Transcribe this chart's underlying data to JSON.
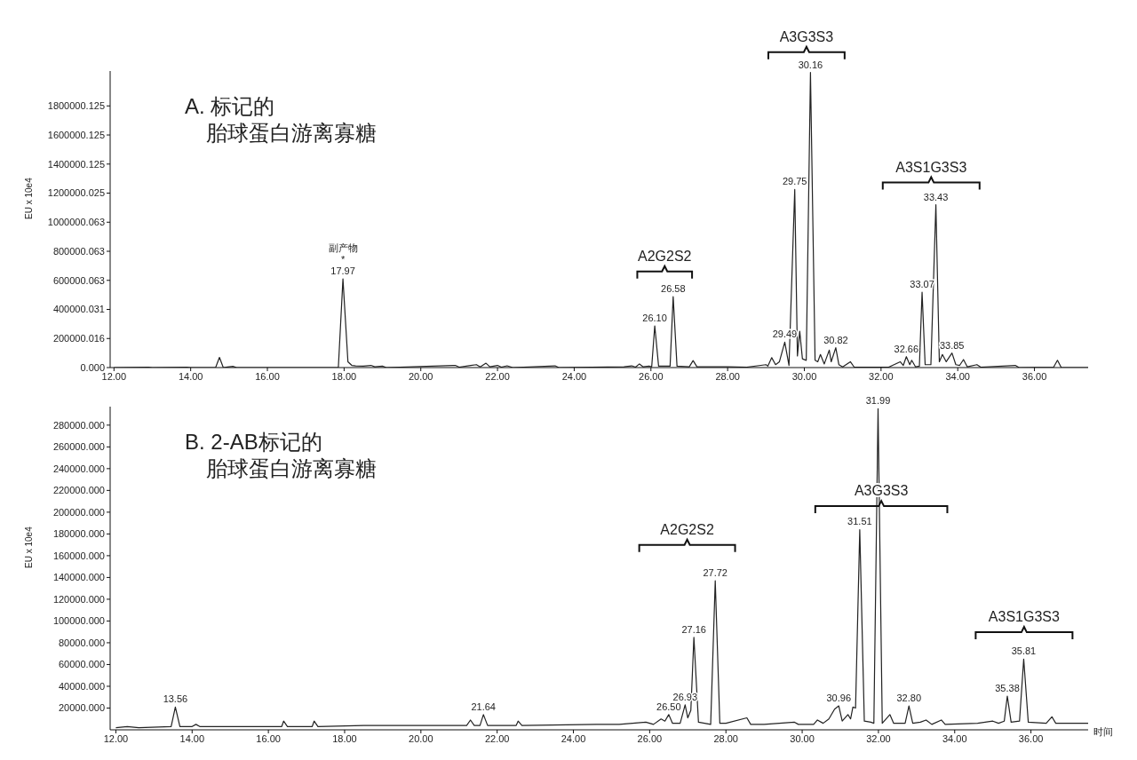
{
  "chart_data": [
    {
      "type": "line",
      "title": "A. 标记的",
      "subtitle": "胎球蛋白游离寡糖",
      "ylabel": "EU x 10e4",
      "xlim": [
        11.9,
        37.4
      ],
      "ylim": [
        0,
        2040000
      ],
      "xticks": [
        {
          "value": 12,
          "label": "12.00"
        },
        {
          "value": 14,
          "label": "14.00"
        },
        {
          "value": 16,
          "label": "16.00"
        },
        {
          "value": 18,
          "label": "18.00"
        },
        {
          "value": 20,
          "label": "20.00"
        },
        {
          "value": 22,
          "label": "22.00"
        },
        {
          "value": 24,
          "label": "24.00"
        },
        {
          "value": 26,
          "label": "26.00"
        },
        {
          "value": 28,
          "label": "28.00"
        },
        {
          "value": 30,
          "label": "30.00"
        },
        {
          "value": 32,
          "label": "32.00"
        },
        {
          "value": 34,
          "label": "34.00"
        },
        {
          "value": 36,
          "label": "36.00"
        }
      ],
      "yticks": [
        {
          "value": 0,
          "label": "0.000"
        },
        {
          "value": 200000.016,
          "label": "200000.016"
        },
        {
          "value": 400000.031,
          "label": "400000.031"
        },
        {
          "value": 600000.063,
          "label": "600000.063"
        },
        {
          "value": 800000.063,
          "label": "800000.063"
        },
        {
          "value": 1000000.063,
          "label": "1000000.063"
        },
        {
          "value": 1200000.025,
          "label": "1200000.025"
        },
        {
          "value": 1400000.125,
          "label": "1400000.125"
        },
        {
          "value": 1600000.125,
          "label": "1600000.125"
        },
        {
          "value": 1800000.125,
          "label": "1800000.125"
        }
      ],
      "series": [
        {
          "color": "#222222",
          "x": [
            12.0,
            12.9,
            13.0,
            13.9,
            14.0,
            14.65,
            14.75,
            14.85,
            15.1,
            15.2,
            17.85,
            17.97,
            18.1,
            18.2,
            18.3,
            18.5,
            18.7,
            18.8,
            19.0,
            19.1,
            20.9,
            21.0,
            21.3,
            21.45,
            21.55,
            21.7,
            21.8,
            22.0,
            22.1,
            22.25,
            22.4,
            23.5,
            23.6,
            25.3,
            25.5,
            25.6,
            25.7,
            25.8,
            25.95,
            26.02,
            26.1,
            26.2,
            26.5,
            26.58,
            26.68,
            27.0,
            27.1,
            27.2,
            28.0,
            28.5,
            29.0,
            29.05,
            29.15,
            29.25,
            29.35,
            29.49,
            29.6,
            29.75,
            29.82,
            29.88,
            29.95,
            30.05,
            30.16,
            30.28,
            30.35,
            30.42,
            30.52,
            30.65,
            30.7,
            30.82,
            30.9,
            31.0,
            31.2,
            31.3,
            32.2,
            32.5,
            32.58,
            32.66,
            32.75,
            32.8,
            32.9,
            33.0,
            33.07,
            33.15,
            33.3,
            33.43,
            33.52,
            33.6,
            33.7,
            33.85,
            33.95,
            34.05,
            34.15,
            34.25,
            34.5,
            34.6,
            35.5,
            35.6,
            36.5,
            36.6,
            36.7,
            37.4
          ],
          "values": [
            0,
            3000,
            0,
            3000,
            0,
            0,
            70000,
            0,
            8000,
            0,
            0,
            610000,
            40000,
            15000,
            12000,
            10000,
            15000,
            5000,
            10000,
            0,
            15000,
            3000,
            15000,
            20000,
            5000,
            30000,
            5000,
            15000,
            3000,
            12000,
            0,
            12000,
            0,
            5000,
            12000,
            3000,
            25000,
            5000,
            10000,
            5000,
            287000,
            10000,
            10000,
            488000,
            10000,
            5000,
            48000,
            5000,
            5000,
            3000,
            20000,
            10000,
            68000,
            20000,
            40000,
            175000,
            15000,
            1225000,
            80000,
            250000,
            60000,
            50000,
            2030000,
            50000,
            40000,
            90000,
            25000,
            120000,
            40000,
            137000,
            20000,
            5000,
            40000,
            3000,
            3000,
            40000,
            15000,
            75000,
            20000,
            50000,
            5000,
            10000,
            518000,
            20000,
            20000,
            1120000,
            40000,
            90000,
            40000,
            100000,
            20000,
            15000,
            55000,
            5000,
            20000,
            3000,
            15000,
            0,
            3000,
            50000,
            0,
            0
          ]
        }
      ],
      "annotations": [
        {
          "text": "17.97",
          "x": 17.97,
          "y": 610000
        },
        {
          "text": "副产物\n*",
          "x": 17.97,
          "y": 610000
        },
        {
          "text": "26.10",
          "x": 26.1,
          "y": 287000
        },
        {
          "text": "26.58",
          "x": 26.58,
          "y": 488000
        },
        {
          "text": "29.49",
          "x": 29.49,
          "y": 175000
        },
        {
          "text": "29.75",
          "x": 29.75,
          "y": 1225000
        },
        {
          "text": "30.16",
          "x": 30.16,
          "y": 2030000
        },
        {
          "text": "30.82",
          "x": 30.82,
          "y": 137000
        },
        {
          "text": "32.66",
          "x": 32.66,
          "y": 75000
        },
        {
          "text": "33.07",
          "x": 33.07,
          "y": 518000
        },
        {
          "text": "33.43",
          "x": 33.43,
          "y": 1120000
        },
        {
          "text": "33.85",
          "x": 33.85,
          "y": 100000
        },
        "A2G2S2",
        "A3G3S3",
        "A3S1G3S3"
      ]
    },
    {
      "type": "line",
      "title": "B. 2-AB标记的",
      "subtitle": "胎球蛋白游离寡糖",
      "ylabel": "EU x 10e4",
      "xlabel": "时间",
      "xlim": [
        11.85,
        37.5
      ],
      "ylim": [
        0,
        297000
      ],
      "xticks": [
        {
          "value": 12,
          "label": "12.00"
        },
        {
          "value": 14,
          "label": "14.00"
        },
        {
          "value": 16,
          "label": "16.00"
        },
        {
          "value": 18,
          "label": "18.00"
        },
        {
          "value": 20,
          "label": "20.00"
        },
        {
          "value": 22,
          "label": "22.00"
        },
        {
          "value": 24,
          "label": "24.00"
        },
        {
          "value": 26,
          "label": "26.00"
        },
        {
          "value": 28,
          "label": "28.00"
        },
        {
          "value": 30,
          "label": "30.00"
        },
        {
          "value": 32,
          "label": "32.00"
        },
        {
          "value": 34,
          "label": "34.00"
        },
        {
          "value": 36,
          "label": "36.00"
        }
      ],
      "yticks": [
        {
          "value": 20000,
          "label": "20000.000"
        },
        {
          "value": 40000,
          "label": "40000.000"
        },
        {
          "value": 60000,
          "label": "60000.000"
        },
        {
          "value": 80000,
          "label": "80000.000"
        },
        {
          "value": 100000,
          "label": "100000.000"
        },
        {
          "value": 120000,
          "label": "120000.000"
        },
        {
          "value": 140000,
          "label": "140000.000"
        },
        {
          "value": 160000,
          "label": "160000.000"
        },
        {
          "value": 180000,
          "label": "180000.000"
        },
        {
          "value": 200000,
          "label": "200000.000"
        },
        {
          "value": 220000,
          "label": "220000.000"
        },
        {
          "value": 240000,
          "label": "240000.000"
        },
        {
          "value": 260000,
          "label": "260000.000"
        },
        {
          "value": 280000,
          "label": "280000.000"
        }
      ],
      "series": [
        {
          "color": "#222222",
          "x": [
            12.0,
            12.3,
            12.6,
            13.45,
            13.56,
            13.68,
            14.0,
            14.1,
            14.2,
            16.35,
            16.4,
            16.5,
            17.15,
            17.2,
            17.3,
            18.5,
            18.9,
            20.5,
            21.2,
            21.3,
            21.4,
            21.55,
            21.64,
            21.75,
            22.5,
            22.55,
            22.65,
            24.6,
            25.2,
            25.9,
            26.1,
            26.3,
            26.4,
            26.5,
            26.6,
            26.8,
            26.93,
            27.0,
            27.08,
            27.16,
            27.28,
            27.6,
            27.72,
            27.84,
            28.0,
            28.55,
            28.65,
            29.0,
            29.8,
            29.9,
            30.3,
            30.4,
            30.55,
            30.7,
            30.85,
            30.96,
            31.05,
            31.2,
            31.27,
            31.33,
            31.4,
            31.51,
            31.63,
            31.8,
            31.88,
            31.99,
            32.1,
            32.3,
            32.4,
            32.7,
            32.8,
            32.9,
            33.1,
            33.25,
            33.4,
            33.65,
            33.75,
            34.6,
            35.0,
            35.15,
            35.3,
            35.38,
            35.48,
            35.7,
            35.81,
            35.93,
            36.4,
            36.55,
            36.65,
            37.5
          ],
          "values": [
            2000,
            3000,
            2000,
            3000,
            21000,
            3000,
            3000,
            5000,
            3000,
            3000,
            8000,
            3000,
            3000,
            8000,
            3000,
            4000,
            4000,
            4000,
            4000,
            9000,
            4000,
            4000,
            14000,
            4000,
            4000,
            8000,
            4000,
            5000,
            5000,
            7000,
            5000,
            10000,
            8000,
            14000,
            6000,
            6000,
            23000,
            11000,
            18000,
            85000,
            7000,
            5000,
            137000,
            6000,
            6000,
            11000,
            5000,
            5000,
            7000,
            5000,
            5000,
            9000,
            6000,
            10000,
            19000,
            22000,
            8000,
            14000,
            10000,
            21000,
            20000,
            184000,
            8000,
            7000,
            6000,
            295000,
            6000,
            14000,
            6000,
            6000,
            22000,
            6000,
            7000,
            9000,
            5000,
            9000,
            5000,
            6000,
            8000,
            6000,
            8000,
            31000,
            7000,
            8000,
            65000,
            7000,
            6000,
            12000,
            6000,
            6000
          ]
        }
      ],
      "annotations": [
        {
          "text": "13.56",
          "x": 13.56,
          "y": 21000
        },
        {
          "text": "21.64",
          "x": 21.64,
          "y": 14000
        },
        {
          "text": "26.50",
          "x": 26.5,
          "y": 14000
        },
        {
          "text": "26.93",
          "x": 26.93,
          "y": 23000
        },
        {
          "text": "27.16",
          "x": 27.16,
          "y": 85000
        },
        {
          "text": "27.72",
          "x": 27.72,
          "y": 137000
        },
        {
          "text": "30.96",
          "x": 30.96,
          "y": 22000
        },
        {
          "text": "31.51",
          "x": 31.51,
          "y": 184000
        },
        {
          "text": "31.99",
          "x": 31.99,
          "y": 295000
        },
        {
          "text": "32.80",
          "x": 32.8,
          "y": 22000
        },
        {
          "text": "35.38",
          "x": 35.38,
          "y": 31000
        },
        {
          "text": "35.81",
          "x": 35.81,
          "y": 65000
        },
        "A2G2S2",
        "A3G3S3",
        "A3S1G3S3"
      ]
    }
  ]
}
